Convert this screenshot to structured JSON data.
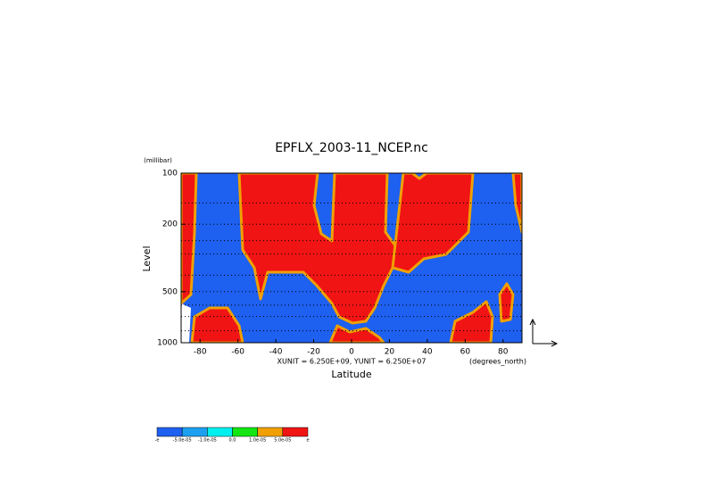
{
  "chart_data": {
    "type": "contour",
    "title": "EPFLX_2003-11_NCEP.nc",
    "y_unit_label": "(millibar)",
    "y_label": "Level",
    "x_label": "Latitude",
    "x_note": "XUNIT = 6.250E+09, YUNIT = 6.250E+07",
    "x_unit_label": "(degrees_north)",
    "xlim": [
      -90,
      90
    ],
    "xticks": [
      -80,
      -60,
      -40,
      -20,
      0,
      20,
      40,
      60,
      80
    ],
    "ylim": [
      100,
      1000
    ],
    "yticks": [
      100,
      200,
      500,
      1000
    ],
    "log_y": true,
    "grid_levels": [
      150,
      200,
      250,
      300,
      400,
      500,
      600,
      700,
      850
    ],
    "colorbar": {
      "colors": [
        "#1e60f0",
        "#1ea0f0",
        "#00f0f0",
        "#14e614",
        "#f0a000",
        "#f01414"
      ],
      "labels": [
        "-e",
        "-5.0e-05",
        "-1.0e-05",
        "0.0",
        "1.0e-05",
        "5.0e-05",
        "e"
      ]
    }
  }
}
